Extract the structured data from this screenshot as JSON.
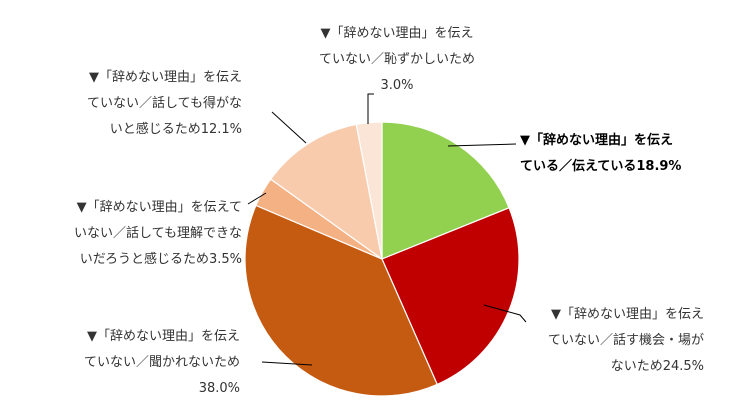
{
  "chart_data": {
    "type": "pie",
    "start": "12 o'clock, clockwise",
    "slices": [
      {
        "value": 18.9,
        "color": "#92D050",
        "label": [
          "▼「辞めない理由」を伝え",
          "ている／伝えている18.9%"
        ],
        "bold": true
      },
      {
        "value": 24.5,
        "color": "#C00000",
        "label": [
          "▼「辞めない理由」を伝え",
          "ていない／話す機会・場が",
          "ないため24.5%"
        ],
        "bold": false
      },
      {
        "value": 38.0,
        "color": "#C55A11",
        "label": [
          "▼「辞めない理由」を伝え",
          "ていない／聞かれないため",
          "38.0%"
        ],
        "bold": false
      },
      {
        "value": 3.5,
        "color": "#F4B183",
        "label": [
          "▼「辞めない理由」を伝えて",
          "いない／話しても理解できな",
          "いだろうと感じるため3.5%"
        ],
        "bold": false
      },
      {
        "value": 12.1,
        "color": "#F8CBAD",
        "label": [
          "▼「辞めない理由」を伝え",
          "ていない／話しても得がな",
          "いと感じるため12.1%"
        ],
        "bold": false
      },
      {
        "value": 3.0,
        "color": "#FBE5D6",
        "label": [
          "▼「辞めない理由」を伝え",
          "ていない／恥ずかしいため",
          "3.0%"
        ],
        "bold": false
      }
    ]
  }
}
